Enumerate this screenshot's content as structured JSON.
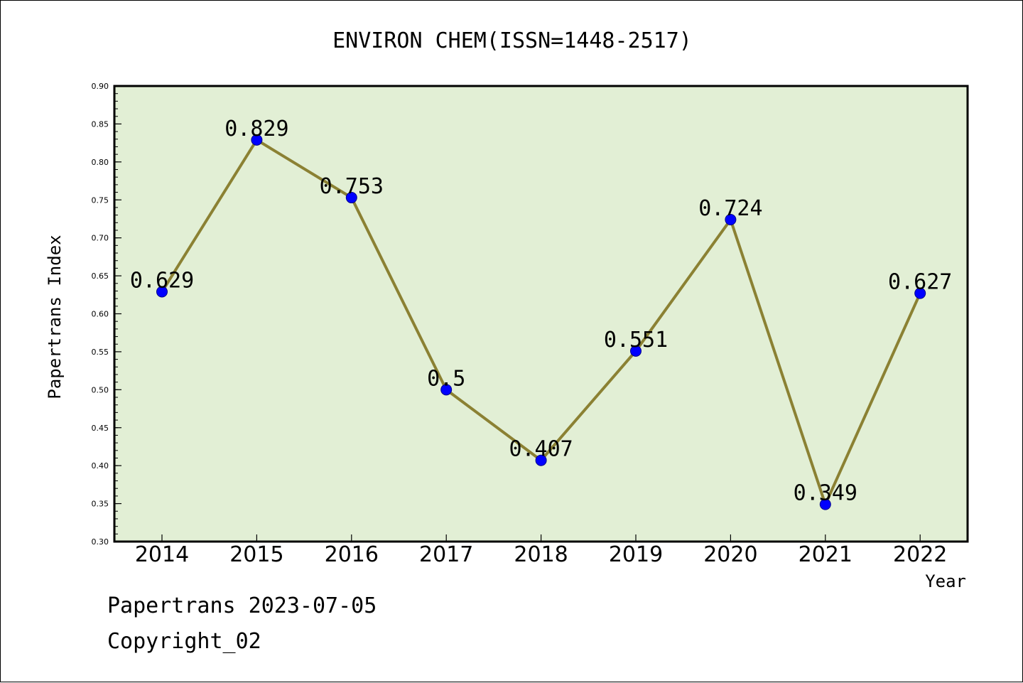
{
  "chart_data": {
    "type": "line",
    "title": "ENVIRON CHEM(ISSN=1448-2517)",
    "xlabel": "Year",
    "ylabel": "Papertrans Index",
    "categories": [
      "2014",
      "2015",
      "2016",
      "2017",
      "2018",
      "2019",
      "2020",
      "2021",
      "2022"
    ],
    "values": [
      0.629,
      0.829,
      0.753,
      0.5,
      0.407,
      0.551,
      0.724,
      0.349,
      0.627
    ],
    "data_labels": [
      "0.629",
      "0.829",
      "0.753",
      "0.5",
      "0.407",
      "0.551",
      "0.724",
      "0.349",
      "0.627"
    ],
    "ylim": [
      0.3,
      0.9
    ],
    "yticks": [
      "0.30",
      "0.35",
      "0.40",
      "0.45",
      "0.50",
      "0.55",
      "0.60",
      "0.65",
      "0.70",
      "0.75",
      "0.80",
      "0.85",
      "0.90"
    ],
    "grid": false,
    "colors": {
      "plot_background": "#e2efd5",
      "line": "#8b8133",
      "marker": "#0000ff"
    }
  },
  "footer": {
    "line1": "Papertrans 2023-07-05",
    "line2": "Copyright_02"
  }
}
